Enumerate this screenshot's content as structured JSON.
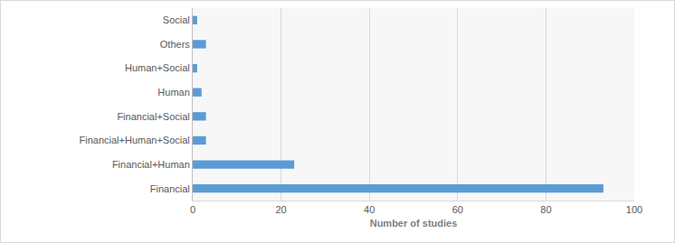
{
  "chart_data": {
    "type": "bar",
    "orientation": "horizontal",
    "xlabel": "Number of studies",
    "categories": [
      "Financial",
      "Financial+Human",
      "Financial+Human+Social",
      "Financial+Social",
      "Human",
      "Human+Social",
      "Others",
      "Social"
    ],
    "values": [
      93,
      23,
      3,
      3,
      2,
      1,
      3,
      1
    ],
    "color": "#5b9bd5",
    "xlim": [
      0,
      100
    ],
    "xticks": [
      0,
      20,
      40,
      60,
      80,
      100
    ],
    "grid": true
  }
}
